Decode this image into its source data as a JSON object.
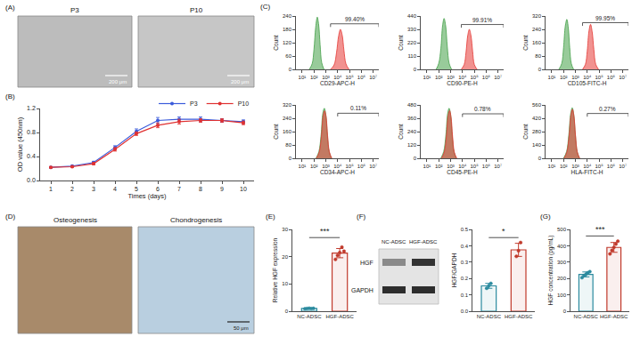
{
  "panel_labels": {
    "A": "(A)",
    "B": "(B)",
    "C": "(C)",
    "D": "(D)",
    "E": "(E)",
    "F": "(F)",
    "G": "(G)"
  },
  "images": {
    "A": [
      {
        "label": "P3",
        "scale_bar": "200 μm"
      },
      {
        "label": "P10",
        "scale_bar": "200 μm"
      }
    ],
    "D": [
      {
        "label": "Osteogenesis"
      },
      {
        "label": "Chondrogenesis",
        "scale_bar": "50 μm"
      }
    ]
  },
  "western_blot": {
    "lanes": [
      "NC-ADSC",
      "HGF-ADSC"
    ],
    "bands": [
      "HGF",
      "GAPDH"
    ]
  },
  "chart_data": [
    {
      "type": "line",
      "x_label": "Times (days)",
      "y_label": "OD value (450nm)",
      "x": [
        1,
        2,
        3,
        4,
        5,
        6,
        7,
        8,
        9,
        10
      ],
      "series": [
        {
          "name": "P3",
          "color": "#3b5bdb",
          "values": [
            0.22,
            0.24,
            0.3,
            0.55,
            0.82,
            1.0,
            1.02,
            1.02,
            1.0,
            0.98
          ],
          "errors": [
            0.01,
            0.01,
            0.02,
            0.03,
            0.04,
            0.05,
            0.04,
            0.04,
            0.03,
            0.03
          ]
        },
        {
          "name": "P10",
          "color": "#e03131",
          "values": [
            0.22,
            0.23,
            0.28,
            0.52,
            0.78,
            0.92,
            0.98,
            1.0,
            1.0,
            0.96
          ],
          "errors": [
            0.01,
            0.01,
            0.02,
            0.03,
            0.03,
            0.04,
            0.04,
            0.03,
            0.03,
            0.03
          ]
        }
      ],
      "xlim": [
        0.5,
        10.5
      ],
      "xticks": [
        1,
        2,
        3,
        4,
        5,
        6,
        7,
        8,
        9,
        10
      ],
      "ylim": [
        0,
        1.2
      ],
      "yticks": [
        {
          "value": 0,
          "label": "0.0"
        },
        0.4,
        0.8,
        1.2
      ],
      "marker": "circle",
      "legend": "top right"
    },
    {
      "type": "area",
      "x_label": "CD29-APC-H",
      "y_label": "Count",
      "log": "x",
      "xlim": [
        3,
        30000000
      ],
      "xticks": [
        {
          "value": 10,
          "label": "10¹"
        },
        {
          "value": 100,
          "label": "10²"
        },
        {
          "value": 1000,
          "label": "10³"
        },
        {
          "value": 10000,
          "label": "10⁴"
        },
        {
          "value": 100000,
          "label": "10⁵"
        },
        {
          "value": 1000000,
          "label": "10⁶"
        },
        {
          "value": 10000000,
          "label": "10⁷"
        }
      ],
      "ylim": [
        0,
        240
      ],
      "yticks": [
        0,
        60,
        120,
        180,
        240
      ],
      "series": [
        {
          "color": "#43a047",
          "x": [
            40,
            70,
            100,
            140,
            190,
            250,
            330,
            450,
            700
          ],
          "values": [
            0,
            25,
            90,
            190,
            235,
            200,
            110,
            30,
            0
          ]
        },
        {
          "color": "#e53935",
          "x": [
            2500,
            5000,
            8000,
            12000,
            17000,
            24000,
            34000,
            50000,
            90000
          ],
          "values": [
            0,
            20,
            75,
            150,
            180,
            155,
            85,
            25,
            0
          ]
        }
      ],
      "annotations": [
        {
          "text": "99.40%",
          "gate": [
            2500,
            30000000
          ],
          "y": 205
        }
      ]
    },
    {
      "type": "area",
      "x_label": "CD90-PE-H",
      "y_label": "Count",
      "log": "x",
      "xlim": [
        3,
        30000000
      ],
      "xticks": [
        {
          "value": 10,
          "label": "10¹"
        },
        {
          "value": 100,
          "label": "10²"
        },
        {
          "value": 1000,
          "label": "10³"
        },
        {
          "value": 10000,
          "label": "10⁴"
        },
        {
          "value": 100000,
          "label": "10⁵"
        },
        {
          "value": 1000000,
          "label": "10⁶"
        },
        {
          "value": 10000000,
          "label": "10⁷"
        }
      ],
      "ylim": [
        0,
        440
      ],
      "yticks": [
        0,
        110,
        220,
        330,
        440
      ],
      "series": [
        {
          "color": "#43a047",
          "x": [
            60,
            100,
            150,
            210,
            280,
            380,
            520,
            750,
            1200
          ],
          "values": [
            0,
            50,
            170,
            360,
            420,
            360,
            190,
            50,
            0
          ]
        },
        {
          "color": "#e53935",
          "x": [
            8000,
            14000,
            20000,
            28000,
            38000,
            52000,
            72000,
            100000,
            170000
          ],
          "values": [
            0,
            40,
            140,
            280,
            330,
            280,
            150,
            40,
            0
          ]
        }
      ],
      "annotations": [
        {
          "text": "99.91%",
          "gate": [
            8000,
            30000000
          ],
          "y": 370
        }
      ]
    },
    {
      "type": "area",
      "x_label": "CD105-FITC-H",
      "y_label": "Count",
      "log": "x",
      "xlim": [
        3,
        30000000
      ],
      "xticks": [
        {
          "value": 10,
          "label": "10¹"
        },
        {
          "value": 100,
          "label": "10²"
        },
        {
          "value": 1000,
          "label": "10³"
        },
        {
          "value": 10000,
          "label": "10⁴"
        },
        {
          "value": 100000,
          "label": "10⁵"
        },
        {
          "value": 1000000,
          "label": "10⁶"
        },
        {
          "value": 10000000,
          "label": "10⁷"
        }
      ],
      "ylim": [
        0,
        320
      ],
      "yticks": [
        0,
        80,
        160,
        240,
        320
      ],
      "series": [
        {
          "color": "#43a047",
          "x": [
            40,
            70,
            100,
            140,
            190,
            250,
            330,
            450,
            700
          ],
          "values": [
            0,
            35,
            130,
            260,
            300,
            250,
            130,
            35,
            0
          ]
        },
        {
          "color": "#e53935",
          "x": [
            4000,
            7000,
            10000,
            14000,
            19000,
            26000,
            36000,
            52000,
            90000
          ],
          "values": [
            0,
            30,
            110,
            230,
            270,
            225,
            120,
            30,
            0
          ]
        }
      ],
      "annotations": [
        {
          "text": "99.95%",
          "gate": [
            4000,
            30000000
          ],
          "y": 280
        }
      ]
    },
    {
      "type": "area",
      "x_label": "CD34-APC-H",
      "y_label": "Count",
      "log": "x",
      "xlim": [
        3,
        30000000
      ],
      "xticks": [
        {
          "value": 10,
          "label": "10¹"
        },
        {
          "value": 100,
          "label": "10²"
        },
        {
          "value": 1000,
          "label": "10³"
        },
        {
          "value": 10000,
          "label": "10⁴"
        },
        {
          "value": 100000,
          "label": "10⁵"
        },
        {
          "value": 1000000,
          "label": "10⁶"
        },
        {
          "value": 10000000,
          "label": "10⁷"
        }
      ],
      "ylim": [
        0,
        320
      ],
      "yticks": [
        0,
        80,
        160,
        240,
        320
      ],
      "series": [
        {
          "color": "#43a047",
          "x": [
            150,
            260,
            400,
            560,
            750,
            1000,
            1350,
            1900,
            3000
          ],
          "values": [
            0,
            40,
            140,
            270,
            300,
            260,
            140,
            40,
            0
          ]
        },
        {
          "color": "#e53935",
          "x": [
            160,
            280,
            420,
            590,
            790,
            1050,
            1420,
            2000,
            3200
          ],
          "values": [
            0,
            38,
            130,
            255,
            285,
            250,
            135,
            38,
            0
          ]
        }
      ],
      "annotations": [
        {
          "text": "0.11%",
          "gate": [
            10000,
            30000000
          ],
          "y": 270
        }
      ]
    },
    {
      "type": "area",
      "x_label": "CD45-PE-H",
      "y_label": "Count",
      "log": "x",
      "xlim": [
        3,
        30000000
      ],
      "xticks": [
        {
          "value": 10,
          "label": "10¹"
        },
        {
          "value": 100,
          "label": "10²"
        },
        {
          "value": 1000,
          "label": "10³"
        },
        {
          "value": 10000,
          "label": "10⁴"
        },
        {
          "value": 100000,
          "label": "10⁵"
        },
        {
          "value": 1000000,
          "label": "10⁶"
        },
        {
          "value": 10000000,
          "label": "10⁷"
        }
      ],
      "ylim": [
        0,
        480
      ],
      "yticks": [
        0,
        120,
        240,
        360,
        480
      ],
      "series": [
        {
          "color": "#43a047",
          "x": [
            150,
            260,
            400,
            560,
            750,
            1000,
            1350,
            1900,
            3000
          ],
          "values": [
            0,
            60,
            210,
            400,
            450,
            390,
            210,
            60,
            0
          ]
        },
        {
          "color": "#e53935",
          "x": [
            170,
            290,
            440,
            610,
            820,
            1090,
            1460,
            2050,
            3300
          ],
          "values": [
            0,
            55,
            200,
            380,
            430,
            370,
            200,
            55,
            0
          ]
        }
      ],
      "annotations": [
        {
          "text": "0.78%",
          "gate": [
            10000,
            30000000
          ],
          "y": 400
        }
      ]
    },
    {
      "type": "area",
      "x_label": "HLA-FITC-H",
      "y_label": "Count",
      "log": "x",
      "xlim": [
        3,
        30000000
      ],
      "xticks": [
        {
          "value": 10,
          "label": "10¹"
        },
        {
          "value": 100,
          "label": "10²"
        },
        {
          "value": 1000,
          "label": "10³"
        },
        {
          "value": 10000,
          "label": "10⁴"
        },
        {
          "value": 100000,
          "label": "10⁵"
        },
        {
          "value": 1000000,
          "label": "10⁶"
        },
        {
          "value": 10000000,
          "label": "10⁷"
        }
      ],
      "ylim": [
        0,
        560
      ],
      "yticks": [
        0,
        140,
        280,
        420,
        560
      ],
      "series": [
        {
          "color": "#43a047",
          "x": [
            100,
            180,
            280,
            400,
            540,
            720,
            980,
            1400,
            2200
          ],
          "values": [
            0,
            70,
            250,
            470,
            530,
            460,
            250,
            70,
            0
          ]
        },
        {
          "color": "#e53935",
          "x": [
            110,
            190,
            295,
            420,
            565,
            750,
            1020,
            1450,
            2300
          ],
          "values": [
            0,
            65,
            240,
            455,
            515,
            445,
            240,
            65,
            0
          ]
        }
      ],
      "annotations": [
        {
          "text": "0.27%",
          "gate": [
            10000,
            30000000
          ],
          "y": 470
        }
      ]
    },
    {
      "type": "bar",
      "y_label": "Relative HGF expression",
      "categories": [
        "NC-ADSC",
        "HGF-ADSC"
      ],
      "values": [
        1.0,
        21.3
      ],
      "errors": [
        0.08,
        1.7
      ],
      "points": [
        [
          0.9,
          1.0,
          1.1,
          0.95,
          1.05
        ],
        [
          19.0,
          20.5,
          21.5,
          23.5,
          22.0
        ]
      ],
      "colors": [
        "#2b8a9e",
        "#c0392b"
      ],
      "ylim": [
        0,
        30
      ],
      "yticks": [
        0,
        10,
        20,
        30
      ],
      "annotations": [
        {
          "text": "***",
          "y": 27
        }
      ]
    },
    {
      "type": "bar",
      "y_label": "HGF/GAPDH",
      "categories": [
        "NC-ADSC",
        "HGF-ADSC"
      ],
      "values": [
        0.155,
        0.375
      ],
      "errors": [
        0.015,
        0.04
      ],
      "points": [
        [
          0.14,
          0.155,
          0.17
        ],
        [
          0.335,
          0.37,
          0.42
        ]
      ],
      "colors": [
        "#2b8a9e",
        "#c0392b"
      ],
      "ylim": [
        0,
        0.5
      ],
      "yticks": [
        {
          "value": 0,
          "label": "0.0"
        },
        0.1,
        0.2,
        0.3,
        0.4,
        0.5
      ],
      "annotations": [
        {
          "text": "*",
          "y": 0.45
        }
      ]
    },
    {
      "type": "bar",
      "y_label": "HGF concentration (pg/mL)",
      "categories": [
        "NC-ADSC",
        "HGF-ADSC"
      ],
      "values": [
        225,
        390
      ],
      "errors": [
        15,
        30
      ],
      "points": [
        [
          205,
          218,
          225,
          235,
          242
        ],
        [
          350,
          372,
          390,
          410,
          428
        ]
      ],
      "colors": [
        "#2b8a9e",
        "#c0392b"
      ],
      "ylim": [
        0,
        500
      ],
      "yticks": [
        0,
        100,
        200,
        300,
        400,
        500
      ],
      "annotations": [
        {
          "text": "***",
          "y": 460
        }
      ]
    }
  ]
}
